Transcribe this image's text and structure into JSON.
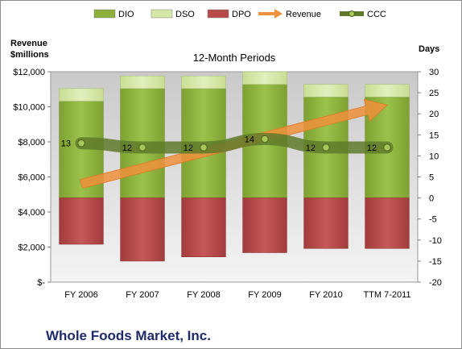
{
  "chart_data": {
    "type": "bar",
    "subtitle": "12-Month Periods",
    "company": "Whole Foods Market, Inc.",
    "left_axis_title": [
      "Revenue",
      "$millions"
    ],
    "right_axis_title": "Days",
    "categories": [
      "FY 2006",
      "FY 2007",
      "FY 2008",
      "FY 2009",
      "FY 2010",
      "TTM 7-2011"
    ],
    "left_ylim": [
      0,
      12000
    ],
    "left_ticks": [
      "$-",
      "$2,000",
      "$4,000",
      "$6,000",
      "$8,000",
      "$10,000",
      "$12,000"
    ],
    "right_ylim": [
      -20,
      30
    ],
    "right_ticks": [
      "-20",
      "-15",
      "-10",
      "-5",
      "0",
      "5",
      "10",
      "15",
      "20",
      "25",
      "30"
    ],
    "legend": [
      {
        "name": "DIO",
        "kind": "bar",
        "color": "#8cb03a"
      },
      {
        "name": "DSO",
        "kind": "bar",
        "color": "#d6e7a8"
      },
      {
        "name": "DPO",
        "kind": "bar",
        "color": "#b84a4a"
      },
      {
        "name": "Revenue",
        "kind": "arrow",
        "color": "#f0913c"
      },
      {
        "name": "CCC",
        "kind": "line",
        "color": "#5f7a2a"
      }
    ],
    "series": [
      {
        "name": "DIO",
        "axis": "days",
        "values": [
          23,
          26,
          26,
          27,
          24,
          24
        ]
      },
      {
        "name": "DSO",
        "axis": "days",
        "values": [
          3,
          3,
          3,
          3,
          3,
          3
        ]
      },
      {
        "name": "DPO",
        "axis": "days",
        "values": [
          -11,
          -15,
          -14,
          -13,
          -12,
          -12
        ]
      },
      {
        "name": "Revenue",
        "axis": "revenue",
        "values": [
          5600,
          6600,
          7950,
          8030,
          9000,
          10100
        ]
      },
      {
        "name": "CCC",
        "axis": "days",
        "values": [
          13,
          12,
          12,
          14,
          12,
          12
        ],
        "labels": [
          "13",
          "12",
          "12",
          "14",
          "12",
          "12"
        ]
      }
    ]
  }
}
